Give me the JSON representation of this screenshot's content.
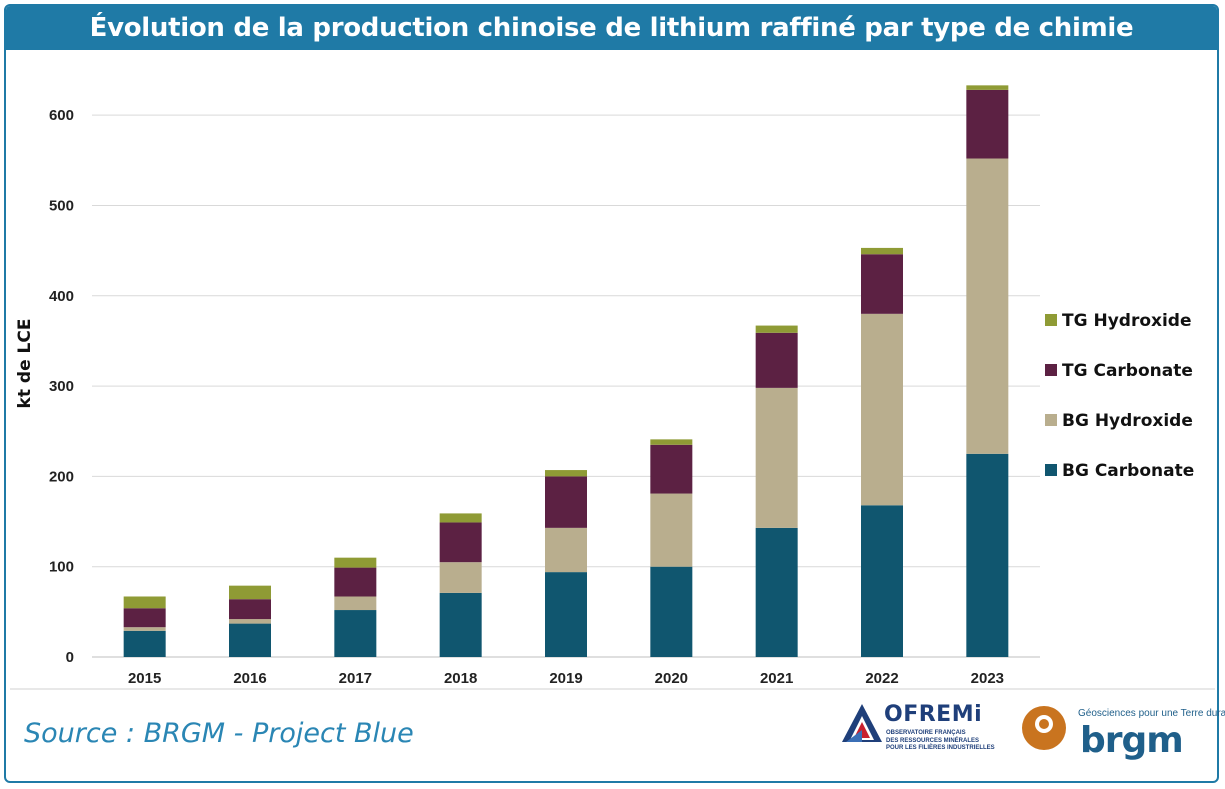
{
  "title": "Évolution de la production chinoise de lithium raffiné par type de chimie",
  "source": "Source : BRGM - Project Blue",
  "logos": {
    "ofremi_name": "OFREMi",
    "ofremi_subtitle": "OBSERVATOIRE FRANÇAIS\nDES RESSOURCES MINÉRALES\nPOUR LES FILIÈRES INDUSTRIELLES",
    "brgm_name": "brgm",
    "brgm_tagline": "Géosciences pour une Terre durable"
  },
  "colors": {
    "frame": "#1f7aa6",
    "bg_carbonate": "#10566f",
    "bg_hydroxide": "#b9ae8e",
    "tg_carbonate": "#5c2143",
    "tg_hydroxide": "#8f9b35"
  },
  "chart_data": {
    "type": "bar",
    "stacked": true,
    "ylabel": "kt de LCE",
    "xlabel": "",
    "ylim": [
      0,
      650
    ],
    "yticks": [
      0,
      100,
      200,
      300,
      400,
      500,
      600
    ],
    "grid": true,
    "legend_position": "right",
    "categories": [
      "2015",
      "2016",
      "2017",
      "2018",
      "2019",
      "2020",
      "2021",
      "2022",
      "2023"
    ],
    "series": [
      {
        "name": "BG Carbonate",
        "values": [
          29,
          37,
          52,
          71,
          94,
          100,
          143,
          168,
          225
        ]
      },
      {
        "name": "BG Hydroxide",
        "values": [
          4,
          5,
          15,
          34,
          49,
          81,
          155,
          212,
          327
        ]
      },
      {
        "name": "TG Carbonate",
        "values": [
          21,
          22,
          32,
          44,
          57,
          54,
          61,
          66,
          76
        ]
      },
      {
        "name": "TG Hydroxide",
        "values": [
          13,
          15,
          11,
          10,
          7,
          6,
          8,
          7,
          5
        ]
      }
    ]
  }
}
